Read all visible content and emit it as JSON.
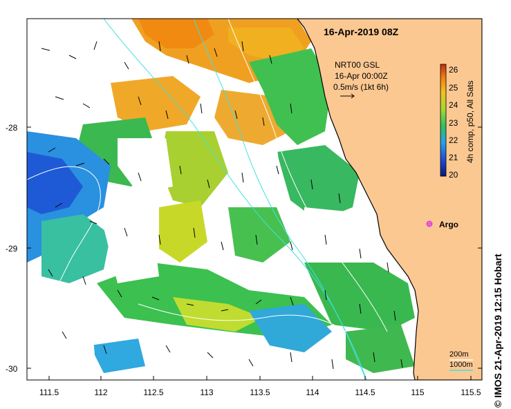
{
  "title": "16-Apr-2019 08Z",
  "credit": "© IMOS 21-Apr-2019 12:15 Hobart",
  "legend": {
    "product": "NRT00 GSL",
    "date": "16-Apr 00:00Z",
    "scale": "0.5m/s (1kt 6h)"
  },
  "colorbar": {
    "label": "4h comp, p50, All Sats",
    "ticks": [
      "20",
      "21",
      "22",
      "23",
      "24",
      "25",
      "26"
    ],
    "colors": [
      "#0a1a7a",
      "#1e4fd6",
      "#2aa0e8",
      "#30c060",
      "#a8d830",
      "#f0c020",
      "#f08010",
      "#c03010"
    ]
  },
  "marker": {
    "label": "Argo",
    "color": "#e040e0"
  },
  "isobaths": {
    "shallow": "200m",
    "deep": "1000m",
    "color_shallow": "#ffffff",
    "color_deep": "#40e0e0"
  },
  "axes": {
    "x_ticks": [
      "111.5",
      "112",
      "112.5",
      "113",
      "113.5",
      "114",
      "114.5",
      "115",
      "115.5"
    ],
    "y_ticks": [
      "-28",
      "-29",
      "-30"
    ]
  },
  "colors": {
    "land": "#fbc892",
    "coast": "#000000"
  }
}
